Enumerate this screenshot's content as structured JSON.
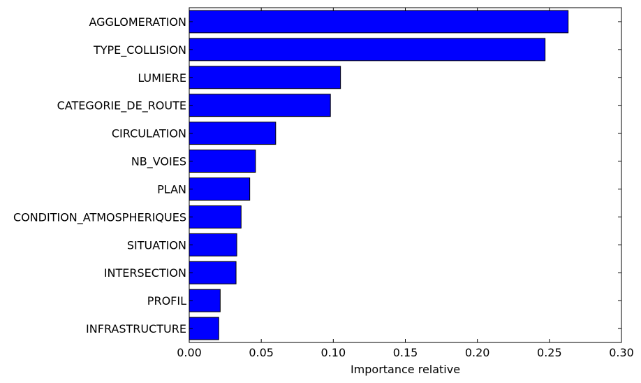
{
  "chart_data": {
    "type": "bar",
    "orientation": "horizontal",
    "categories": [
      "AGGLOMERATION",
      "TYPE_COLLISION",
      "LUMIERE",
      "CATEGORIE_DE_ROUTE",
      "CIRCULATION",
      "NB_VOIES",
      "PLAN",
      "CONDITION_ATMOSPHERIQUES",
      "SITUATION",
      "INTERSECTION",
      "PROFIL",
      "INFRASTRUCTURE"
    ],
    "values": [
      0.263,
      0.247,
      0.105,
      0.098,
      0.06,
      0.046,
      0.042,
      0.036,
      0.033,
      0.0325,
      0.0215,
      0.0205
    ],
    "xlabel": "Importance relative",
    "ylabel": "",
    "xlim": [
      0.0,
      0.3
    ],
    "xticks": [
      "0.00",
      "0.05",
      "0.10",
      "0.15",
      "0.20",
      "0.25",
      "0.30"
    ],
    "bar_color": "#0000ff",
    "grid": false
  }
}
